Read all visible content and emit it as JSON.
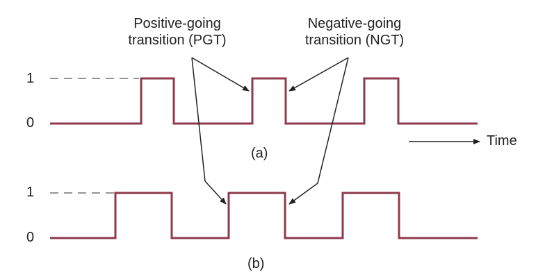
{
  "annotations": {
    "pgt_line1": "Positive-going",
    "pgt_line2": "transition (PGT)",
    "ngt_line1": "Negative-going",
    "ngt_line2": "transition (NGT)"
  },
  "levels": {
    "high": "1",
    "low": "0"
  },
  "time_label": "Time",
  "waveform_a": {
    "caption": "(a)"
  },
  "waveform_b": {
    "caption": "(b)"
  },
  "colors": {
    "waveform": "#8e3a4c",
    "ink": "#222222",
    "dashes": "#555555"
  }
}
